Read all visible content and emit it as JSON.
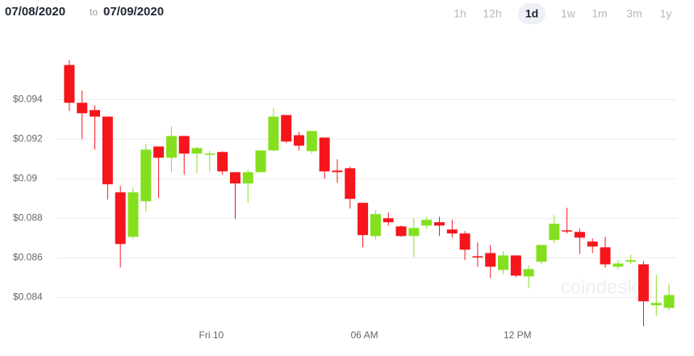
{
  "chart_data": {
    "type": "candlestick",
    "range": {
      "from": "07/08/2020",
      "separator": "to",
      "to": "07/09/2020"
    },
    "timeframes": [
      "1h",
      "12h",
      "1d",
      "1w",
      "1m",
      "3m",
      "1y"
    ],
    "selected_timeframe": "1d",
    "watermark": "coindesk",
    "categories": [
      null,
      null,
      null,
      null,
      null,
      null,
      null,
      null,
      null,
      null,
      null,
      "Fri 10",
      null,
      null,
      null,
      null,
      null,
      null,
      null,
      null,
      null,
      null,
      null,
      "06 AM",
      null,
      null,
      null,
      null,
      null,
      null,
      null,
      null,
      null,
      null,
      null,
      "12 PM",
      null,
      null,
      null,
      null,
      null,
      null,
      null,
      null,
      null,
      null,
      null,
      null
    ],
    "open": [
      0.09575,
      0.09384,
      0.09347,
      0.09314,
      0.08931,
      0.08706,
      0.08886,
      0.09163,
      0.09106,
      0.09216,
      0.09127,
      0.09123,
      0.09135,
      0.09033,
      0.08976,
      0.09033,
      0.09143,
      0.09322,
      0.0922,
      0.09139,
      0.09208,
      0.09041,
      0.09053,
      0.08878,
      0.0871,
      0.088,
      0.08759,
      0.0871,
      0.08763,
      0.0878,
      0.08743,
      0.08723,
      0.08608,
      0.08624,
      0.08539,
      0.08612,
      0.08506,
      0.0858,
      0.0869,
      0.08739,
      0.08731,
      0.08682,
      0.08653,
      0.08555,
      0.0858,
      0.08567,
      0.0836,
      0.08347
    ],
    "high": [
      0.096,
      0.09445,
      0.09371,
      0.09314,
      0.08963,
      0.08955,
      0.09176,
      0.09163,
      0.09265,
      0.09216,
      0.09163,
      0.09143,
      0.09139,
      0.09033,
      0.09045,
      0.09143,
      0.09359,
      0.09322,
      0.09237,
      0.09241,
      0.09208,
      0.09098,
      0.09061,
      0.08878,
      0.08841,
      0.08829,
      0.08763,
      0.088,
      0.08808,
      0.08808,
      0.08792,
      0.08735,
      0.08678,
      0.08665,
      0.08633,
      0.08612,
      0.08563,
      0.08665,
      0.08816,
      0.08853,
      0.08747,
      0.08698,
      0.08706,
      0.08588,
      0.08616,
      0.08584,
      0.08514,
      0.0847
    ],
    "low": [
      0.09343,
      0.092,
      0.09147,
      0.08894,
      0.08551,
      0.08694,
      0.08833,
      0.08902,
      0.09033,
      0.0902,
      0.09029,
      0.09037,
      0.0902,
      0.08796,
      0.08878,
      0.09033,
      0.09139,
      0.0918,
      0.09143,
      0.09127,
      0.09,
      0.0898,
      0.08849,
      0.08653,
      0.08694,
      0.08763,
      0.08706,
      0.08604,
      0.08747,
      0.0871,
      0.08702,
      0.08588,
      0.08555,
      0.08498,
      0.08518,
      0.08502,
      0.08445,
      0.08567,
      0.08674,
      0.08723,
      0.0862,
      0.08624,
      0.08551,
      0.08543,
      0.08567,
      0.08253,
      0.08307,
      0.08335
    ],
    "close": [
      0.09384,
      0.09331,
      0.09314,
      0.08972,
      0.0867,
      0.08931,
      0.09147,
      0.09106,
      0.09216,
      0.09127,
      0.09155,
      0.09127,
      0.09037,
      0.08976,
      0.09033,
      0.09143,
      0.09314,
      0.09188,
      0.09167,
      0.09241,
      0.09037,
      0.09033,
      0.08898,
      0.08715,
      0.08821,
      0.0878,
      0.0871,
      0.08751,
      0.08792,
      0.08763,
      0.08723,
      0.08641,
      0.08604,
      0.08555,
      0.08612,
      0.0851,
      0.08543,
      0.08665,
      0.08772,
      0.08735,
      0.08702,
      0.08657,
      0.08567,
      0.08571,
      0.08588,
      0.0838,
      0.08372,
      0.08412
    ],
    "up_color": "#84e01e",
    "down_color": "#f5151b",
    "ylim": [
      0.0823,
      0.0972
    ],
    "yticks": [
      {
        "value": 0.084,
        "label": "$0.084"
      },
      {
        "value": 0.086,
        "label": "$0.086"
      },
      {
        "value": 0.088,
        "label": "$0.088"
      },
      {
        "value": 0.09,
        "label": "$0.09"
      },
      {
        "value": 0.092,
        "label": "$0.092"
      },
      {
        "value": 0.094,
        "label": "$0.094"
      }
    ],
    "grid": true
  }
}
